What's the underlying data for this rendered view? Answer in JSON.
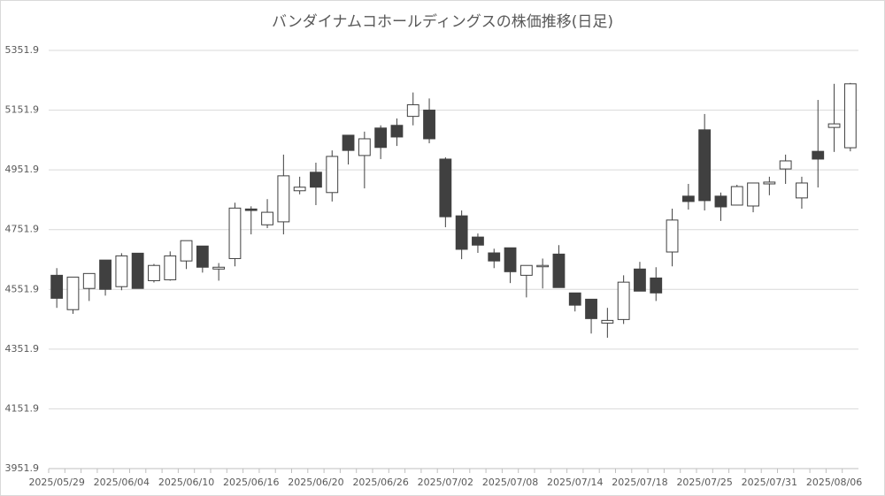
{
  "chart_data": {
    "type": "candlestick",
    "title": "バンダイナムコホールディングスの株価推移(日足)",
    "categories": [
      "2025/05/29",
      null,
      null,
      null,
      "2025/06/04",
      null,
      null,
      null,
      "2025/06/10",
      null,
      null,
      null,
      "2025/06/16",
      null,
      null,
      null,
      "2025/06/20",
      null,
      null,
      null,
      "2025/06/26",
      null,
      null,
      null,
      "2025/07/02",
      null,
      null,
      null,
      "2025/07/08",
      null,
      null,
      null,
      "2025/07/14",
      null,
      null,
      null,
      "2025/07/18",
      null,
      null,
      null,
      "2025/07/25",
      null,
      null,
      null,
      "2025/07/31",
      null,
      null,
      null,
      "2025/08/06",
      null
    ],
    "open": [
      4599,
      4484,
      4555,
      4650,
      4561,
      4673,
      4581,
      4584,
      4647,
      4697,
      4620,
      4655,
      4821,
      4768,
      4778,
      4882,
      4944,
      4876,
      5068,
      5000,
      5092,
      5101,
      5131,
      5152,
      4988,
      4798,
      4727,
      4674,
      4691,
      4599,
      4629,
      4670,
      4540,
      4519,
      4439,
      4451,
      4620,
      4590,
      4677,
      4864,
      5086,
      4864,
      4834,
      4831,
      4905,
      4955,
      4858,
      5014,
      5094,
      5026
    ],
    "high": [
      4623,
      4593,
      4605,
      4650,
      4673,
      4673,
      4637,
      4679,
      4715,
      4697,
      4640,
      4842,
      4830,
      4854,
      5003,
      4929,
      4976,
      5017,
      5068,
      5080,
      5101,
      5124,
      5211,
      5191,
      4994,
      4816,
      4739,
      4688,
      4691,
      4632,
      4655,
      4700,
      4540,
      4519,
      4490,
      4599,
      4644,
      4626,
      4822,
      4905,
      5139,
      4876,
      4902,
      4908,
      4929,
      5003,
      4929,
      5186,
      5240,
      5243
    ],
    "low": [
      4490,
      4470,
      4513,
      4531,
      4549,
      4555,
      4575,
      4581,
      4620,
      4608,
      4581,
      4629,
      4736,
      4757,
      4736,
      4870,
      4834,
      4846,
      4970,
      4890,
      4988,
      5032,
      5101,
      5041,
      4760,
      4653,
      4674,
      4623,
      4573,
      4525,
      4555,
      4558,
      4478,
      4404,
      4390,
      4436,
      4546,
      4513,
      4629,
      4819,
      4816,
      4781,
      4834,
      4810,
      4867,
      4905,
      4822,
      4893,
      5012,
      5014
    ],
    "close": [
      4522,
      4593,
      4605,
      4552,
      4664,
      4555,
      4632,
      4664,
      4715,
      4626,
      4626,
      4824,
      4816,
      4810,
      4932,
      4894,
      4894,
      4997,
      5017,
      5056,
      5027,
      5062,
      5170,
      5056,
      4795,
      4686,
      4700,
      4647,
      4611,
      4632,
      4632,
      4558,
      4499,
      4454,
      4448,
      4576,
      4546,
      4540,
      4784,
      4846,
      4849,
      4828,
      4896,
      4908,
      4911,
      4982,
      4908,
      4988,
      5106,
      5240
    ],
    "up_color": "#ffffff",
    "down_color": "#404040",
    "ylim": [
      3951.9,
      5351.9
    ],
    "yticks": [
      3951.9,
      4151.9,
      4351.9,
      4551.9,
      4751.9,
      4951.9,
      5151.9,
      5351.9
    ],
    "grid": true
  }
}
